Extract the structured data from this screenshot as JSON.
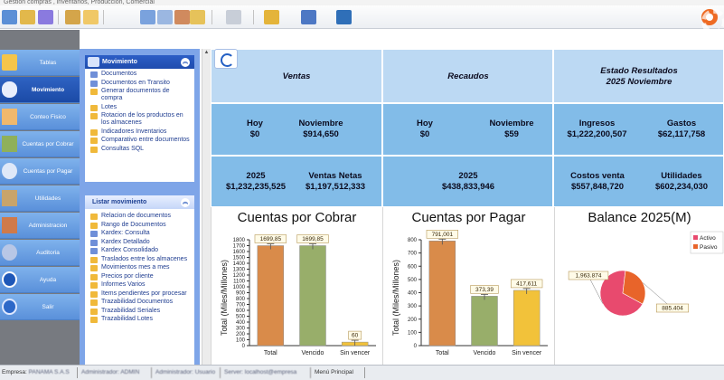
{
  "window": {
    "title": "Gestion  compras , inventarios, Produccion, Comercial"
  },
  "colors": {
    "nav_blue": "#5a90da",
    "nav_active": "#1b4aa6",
    "panel": "#7ea5e8",
    "tile": "#82bce8",
    "bar_total": "#d98b4a",
    "bar_vencido": "#98ae6a",
    "bar_sinvencer": "#f2c23a",
    "activo": "#e84a6e",
    "pasivo": "#e8642a"
  },
  "nav": {
    "items": [
      {
        "label": "Tablas",
        "icon": "folder-icon"
      },
      {
        "label": "Movimiento",
        "icon": "movement-icon"
      },
      {
        "label": "Conteo Fisico",
        "icon": "count-icon"
      },
      {
        "label": "Cuentas por Cobrar",
        "icon": "money-icon"
      },
      {
        "label": "Cuentas por Pagar",
        "icon": "payment-icon"
      },
      {
        "label": "Utilidades",
        "icon": "tools-icon"
      },
      {
        "label": "Administracion",
        "icon": "admin-icon"
      },
      {
        "label": "Auditoria",
        "icon": "audit-icon"
      },
      {
        "label": "Ayuda",
        "icon": "help-icon"
      },
      {
        "label": "Salir",
        "icon": "power-icon"
      }
    ]
  },
  "panel": {
    "movimiento_title": "Movimiento",
    "movimiento_items": [
      "Documentos",
      "Documentos en Transito",
      "Generar documentos de compra",
      "Lotes",
      "Rotacion de los productos en los almacenes",
      "Indicadores Inventarios",
      "Comparativo entre documentos",
      "Consultas SQL"
    ],
    "listar_title": "Listar movimiento",
    "listar_items": [
      "Relacion de documentos",
      "Rango de Documentos",
      "Kardex: Consulta",
      "Kardex Detallado",
      "Kardex Consolidado",
      "Traslados entre los almacenes",
      "Movimientos mes a mes",
      "Precios por cliente",
      "Informes Varios",
      "Items pendientes por procesar",
      "Trazabilidad Documentos",
      "Trazabilidad Seriales",
      "Trazabilidad Lotes"
    ]
  },
  "dashboard": {
    "ventas": {
      "title": "Ventas",
      "hoy_label": "Hoy",
      "hoy_value": "$0",
      "mes_label": "Noviembre",
      "mes_value": "$914,650",
      "anio_label": "2025",
      "anio_value": "$1,232,235,525",
      "netas_label": "Ventas Netas",
      "netas_value": "$1,197,512,333"
    },
    "recaudos": {
      "title": "Recaudos",
      "hoy_label": "Hoy",
      "hoy_value": "$0",
      "mes_label": "Noviembre",
      "mes_value": "$59",
      "anio_label": "2025",
      "anio_value": "$438,833,946"
    },
    "resultados": {
      "title": "Estado Resultados",
      "subtitle": "2025 Noviembre",
      "ingresos_label": "Ingresos",
      "ingresos_value": "$1,222,200,507",
      "gastos_label": "Gastos",
      "gastos_value": "$62,117,758",
      "costos_label": "Costos venta",
      "costos_value": "$557,848,720",
      "utilidades_label": "Utilidades",
      "utilidades_value": "$602,234,030"
    }
  },
  "chart_data": [
    {
      "type": "bar",
      "title": "Cuentas por Cobrar",
      "ylabel": "Total (Miles/Millones)",
      "categories": [
        "Total",
        "Vencido",
        "Sin vencer"
      ],
      "values": [
        1699.85,
        1699.85,
        60
      ],
      "labels": [
        "1699,85",
        "1699,85",
        "60"
      ],
      "ylim": [
        0,
        1800
      ],
      "yticks": [
        0,
        100,
        200,
        300,
        400,
        500,
        600,
        700,
        800,
        900,
        1000,
        1100,
        1200,
        1300,
        1400,
        1500,
        1600,
        1700,
        1800
      ]
    },
    {
      "type": "bar",
      "title": "Cuentas por Pagar",
      "ylabel": "Total (Miles/Millones)",
      "categories": [
        "Total",
        "Vencido",
        "Sin vencer"
      ],
      "values": [
        791.001,
        373.39,
        417.611
      ],
      "labels": [
        "791,001",
        "373,39",
        "417,611"
      ],
      "ylim": [
        0,
        800
      ],
      "yticks": [
        0,
        100,
        200,
        300,
        400,
        500,
        600,
        700,
        800
      ]
    },
    {
      "type": "pie",
      "title": "Balance 2025(M)",
      "legend": [
        "Activo",
        "Pasivo"
      ],
      "values": [
        1963.874,
        885.404
      ],
      "labels": [
        "1,963.874",
        "885.404"
      ]
    }
  ],
  "statusbar": {
    "empresa_label": "Empresa:",
    "empresa_value": "PANAMA S.A.S",
    "usuario": "Administrador: ADMIN",
    "modo": "Administrador: Usuario",
    "server": "Server: localhost@empresa",
    "menu": "Menú Principal"
  }
}
